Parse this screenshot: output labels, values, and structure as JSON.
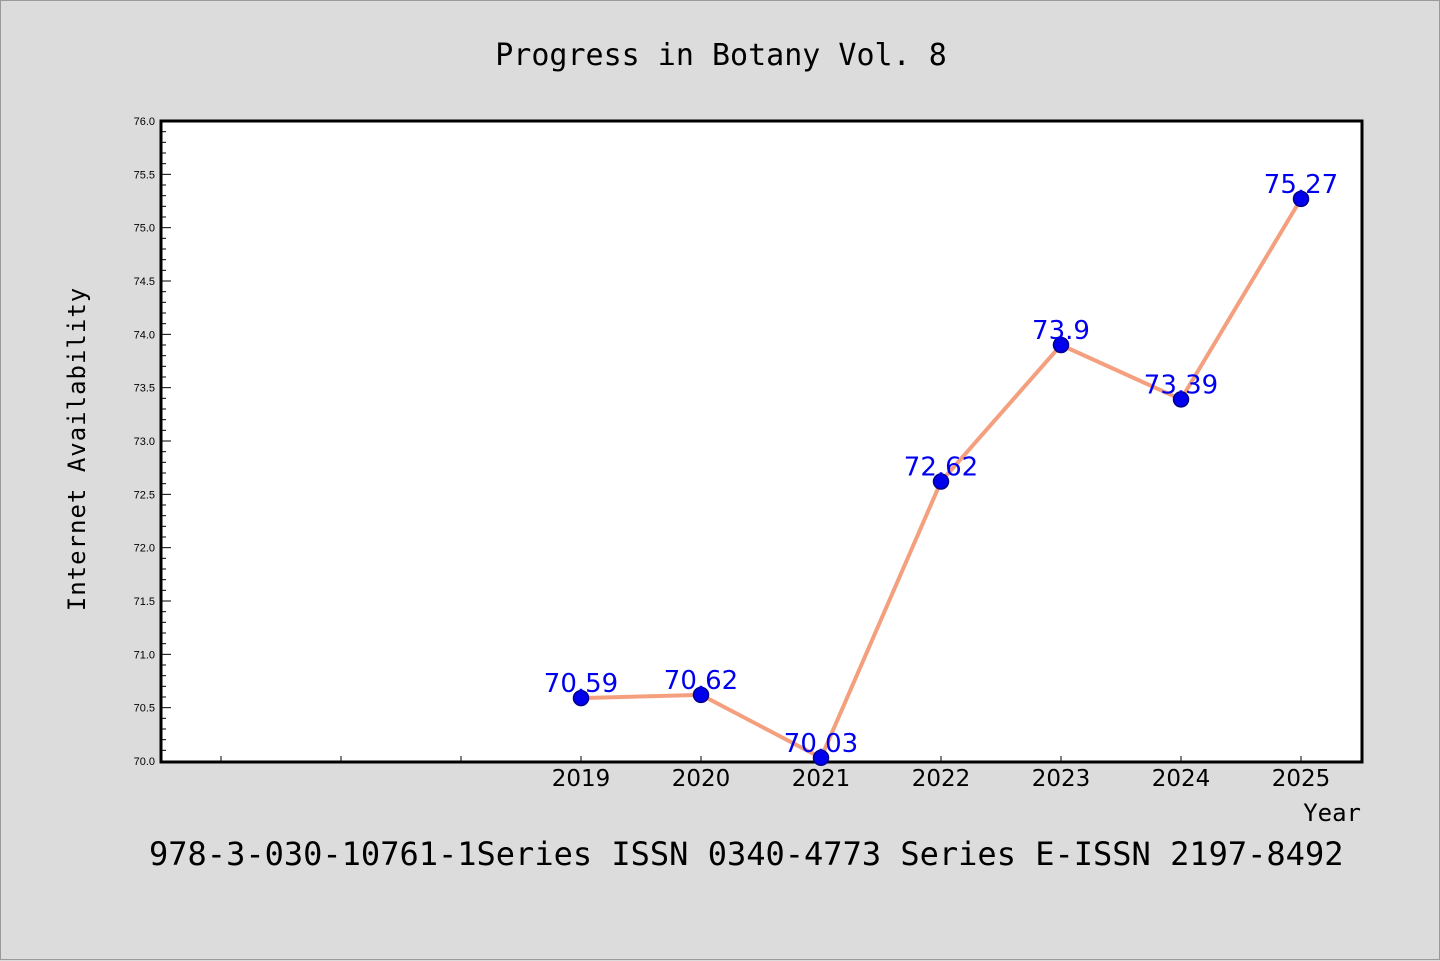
{
  "colors": {
    "background": "#dcdcdc",
    "plot_background": "#ffffff",
    "line": "#f4a07f",
    "marker": "#0000ee",
    "marker_edge": "#00008b",
    "label": "#0000ee",
    "axis": "#000000"
  },
  "chart_data": {
    "type": "line",
    "title": "Progress in Botany Vol. 8",
    "xlabel": "Year",
    "ylabel": "Internet Availability",
    "x": [
      "2019",
      "2020",
      "2021",
      "2022",
      "2023",
      "2024",
      "2025"
    ],
    "series": [
      {
        "values": [
          70.59,
          70.62,
          70.03,
          72.62,
          73.9,
          73.39,
          75.27
        ],
        "labels": [
          "70.59",
          "70.62",
          "70.03",
          "72.62",
          "73.9",
          "73.39",
          "75.27"
        ]
      }
    ],
    "ylim": [
      70.0,
      76.0
    ],
    "yticks": [
      "70.0",
      "70.5",
      "71.0",
      "71.5",
      "72.0",
      "72.5",
      "73.0",
      "73.5",
      "74.0",
      "74.5",
      "75.0",
      "75.5",
      "76.0"
    ],
    "grid": false,
    "legend": "none"
  },
  "footer": "978-3-030-10761-1Series ISSN 0340-4773 Series E-ISSN 2197-8492"
}
